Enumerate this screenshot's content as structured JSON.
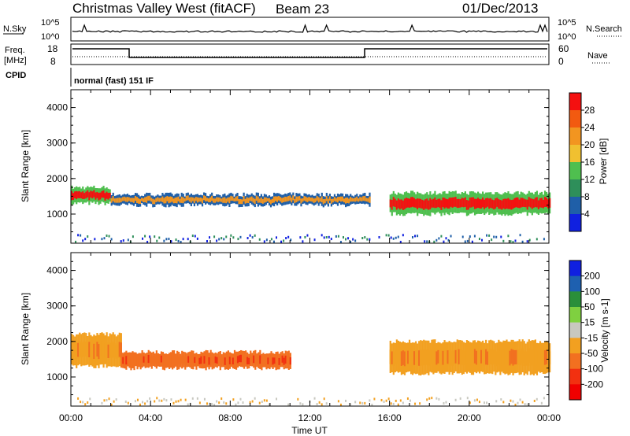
{
  "header": {
    "title": "Christmas Valley West (fitACF)",
    "beam": "Beam 23",
    "date": "01/Dec/2013"
  },
  "strip_labels": {
    "nsky": "N.Sky",
    "nsearch": "N.Search",
    "freq": "Freq.",
    "freq_unit": "[MHz]",
    "nave": "Nave",
    "cpid": "CPID",
    "cpid_value": "normal (fast) 151 IF",
    "nsky_tick_top": "10^5",
    "nsky_tick_bottom": "10^0",
    "freq_tick_top": "18",
    "freq_tick_bottom": "8",
    "nave_tick_top": "60",
    "nave_tick_bottom": "0"
  },
  "colors": {
    "power_scale": [
      "#1020e0",
      "#1f5fa8",
      "#2e8f5a",
      "#4fbf4f",
      "#f0c030",
      "#f29520",
      "#f25a10",
      "#f41010"
    ],
    "velocity_scale": [
      "#1020e0",
      "#1e60b0",
      "#2a8f3a",
      "#7fd040",
      "#c8c8c0",
      "#f2a020",
      "#f27020",
      "#f23010",
      "#f00000"
    ]
  },
  "chart_data": [
    {
      "type": "heatmap",
      "title": "",
      "xlabel": "",
      "ylabel": "Slant Range [km]",
      "colorbar_label": "Power [dB]",
      "colorbar_ticks": [
        "4",
        "8",
        "12",
        "16",
        "20",
        "24",
        "28"
      ],
      "y_ticks": [
        "1000",
        "2000",
        "3000",
        "4000"
      ],
      "ylim": [
        180,
        4500
      ],
      "xlim": [
        0,
        24
      ],
      "bands": [
        {
          "t": [
            0.0,
            2.0
          ],
          "r": [
            1300,
            1750
          ],
          "level": "28"
        },
        {
          "t": [
            2.0,
            15.0
          ],
          "r": [
            1250,
            1550
          ],
          "level": "20"
        },
        {
          "t": [
            16.0,
            24.0
          ],
          "r": [
            1000,
            1600
          ],
          "level": "28"
        }
      ]
    },
    {
      "type": "heatmap",
      "title": "",
      "xlabel": "Time UT",
      "ylabel": "Slant Range [km]",
      "colorbar_label": "Velocity [m s-1]",
      "colorbar_ticks": [
        "200",
        "100",
        "50",
        "15",
        "-15",
        "-50",
        "-100",
        "-200"
      ],
      "y_ticks": [
        "1000",
        "2000",
        "3000",
        "4000"
      ],
      "x_ticks": [
        "00:00",
        "04:00",
        "08:00",
        "12:00",
        "16:00",
        "20:00",
        "00:00"
      ],
      "ylim": [
        180,
        4500
      ],
      "xlim": [
        0,
        24
      ],
      "bands": [
        {
          "t": [
            0.0,
            2.5
          ],
          "r": [
            1300,
            2200
          ],
          "level": "-15"
        },
        {
          "t": [
            2.5,
            11.0
          ],
          "r": [
            1250,
            1700
          ],
          "level": "-50"
        },
        {
          "t": [
            16.0,
            24.0
          ],
          "r": [
            1100,
            2000
          ],
          "level": "-15"
        }
      ]
    }
  ]
}
